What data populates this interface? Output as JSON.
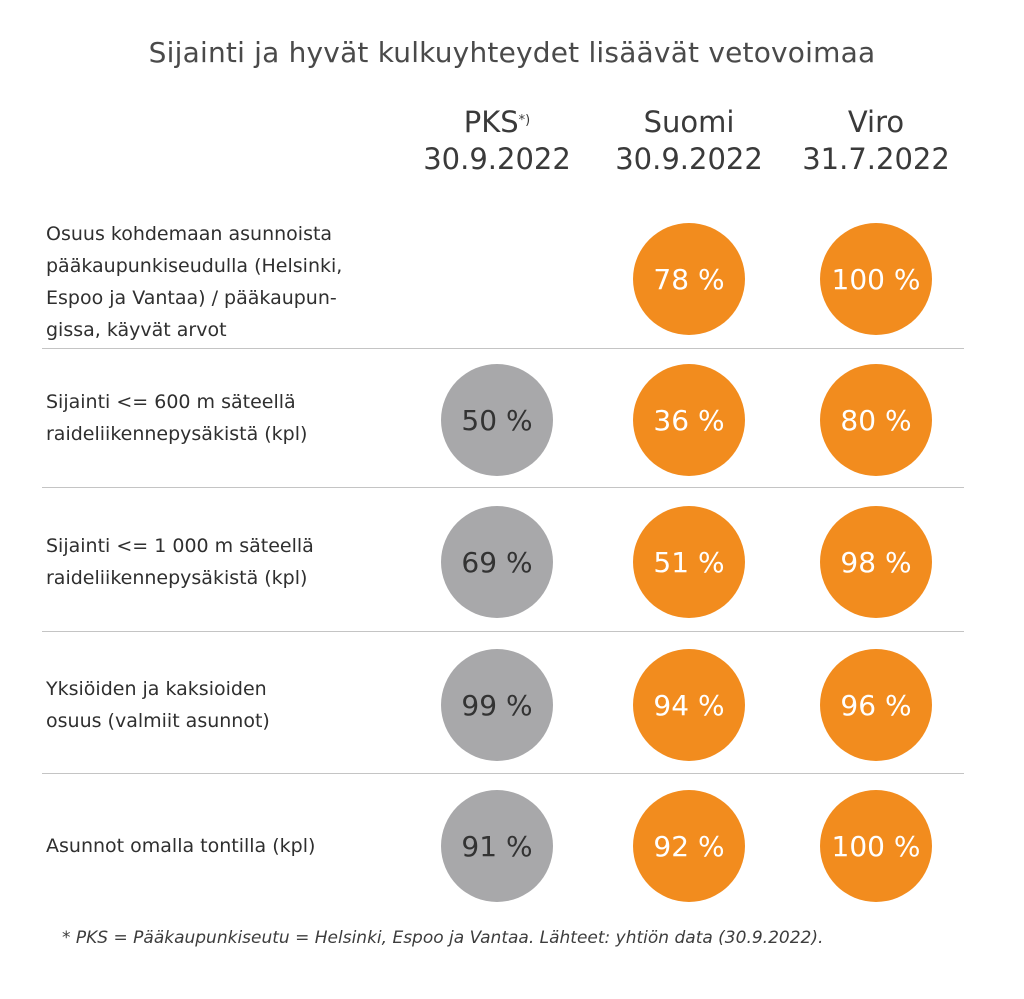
{
  "colors": {
    "orange": "#f28c1e",
    "gray": "#a8a8aa"
  },
  "chart_data": {
    "type": "table",
    "title": "Sijainti ja hyvät kulkuyhteydet lisäävät vetovoimaa",
    "columns": [
      {
        "name": "PKS",
        "marker": "*)",
        "date": "30.9.2022"
      },
      {
        "name": "Suomi",
        "marker": "",
        "date": "30.9.2022"
      },
      {
        "name": "Viro",
        "marker": "",
        "date": "31.7.2022"
      }
    ],
    "rows": [
      {
        "label": "Osuus kohdemaan asunnoista pääkaupunkiseudulla (Helsinki, Espoo ja Vantaa) / pääkaupungissa, käyvät arvot",
        "label_lines": [
          "Osuus kohdemaan asunnoista",
          "pääkaupunkiseudulla (Helsinki,",
          "Espoo ja Vantaa) / pääkaupun-",
          "gissa, käyvät arvot"
        ],
        "values": [
          null,
          78,
          100
        ],
        "display": [
          "",
          "78 %",
          "100 %"
        ]
      },
      {
        "label": "Sijainti <= 600 m säteellä raideliikennepysäkistä (kpl)",
        "label_lines": [
          "Sijainti <= 600 m säteellä",
          "raideliikennepysäkistä (kpl)"
        ],
        "values": [
          50,
          36,
          80
        ],
        "display": [
          "50 %",
          "36 %",
          "80 %"
        ]
      },
      {
        "label": "Sijainti <= 1 000 m säteellä raideliikennepysäkistä (kpl)",
        "label_lines": [
          "Sijainti <= 1 000 m säteellä",
          "raideliikennepysäkistä (kpl)"
        ],
        "values": [
          69,
          51,
          98
        ],
        "display": [
          "69 %",
          "51 %",
          "98 %"
        ]
      },
      {
        "label": "Yksiöiden ja kaksioiden osuus (valmiit asunnot)",
        "label_lines": [
          "Yksiöiden ja kaksioiden",
          "osuus (valmiit asunnot)"
        ],
        "values": [
          99,
          94,
          96
        ],
        "display": [
          "99 %",
          "94 %",
          "96 %"
        ]
      },
      {
        "label": "Asunnot omalla tontilla (kpl)",
        "label_lines": [
          "Asunnot omalla tontilla (kpl)"
        ],
        "values": [
          91,
          92,
          100
        ],
        "display": [
          "91 %",
          "92 %",
          "100 %"
        ]
      }
    ],
    "footnote": "* PKS = Pääkaupunkiseutu =  Helsinki,  Espoo ja Vantaa. Lähteet: yhtiön data (30.9.2022)."
  }
}
